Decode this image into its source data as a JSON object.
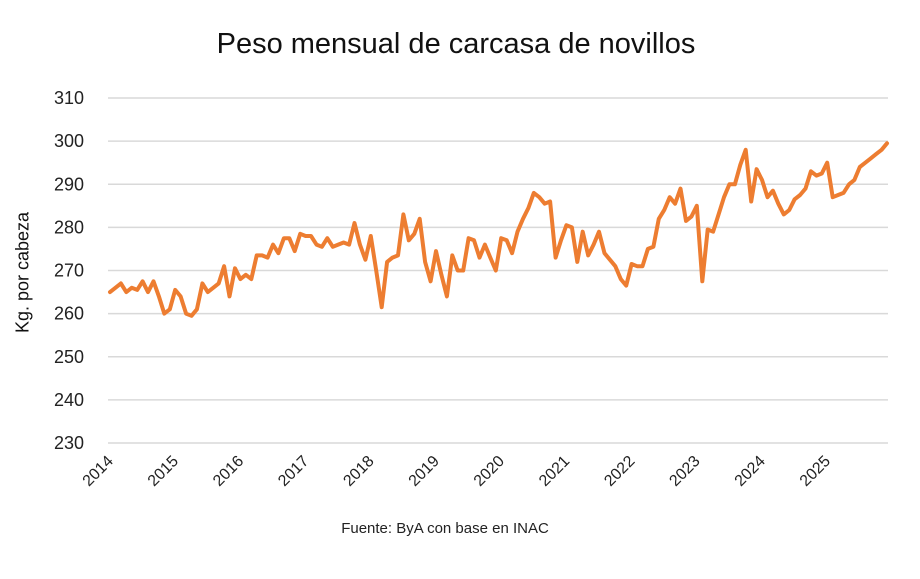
{
  "chart_data": {
    "type": "line",
    "title": "Peso mensual de carcasa de novillos",
    "ylabel": "Kg. por cabeza",
    "xlabel": "",
    "source": "Fuente: ByA con base en INAC",
    "ylim": [
      230,
      310
    ],
    "yticks": [
      230,
      240,
      250,
      260,
      270,
      280,
      290,
      300,
      310
    ],
    "xticks": [
      "2014",
      "2015",
      "2016",
      "2017",
      "2018",
      "2019",
      "2020",
      "2021",
      "2022",
      "2023",
      "2024",
      "2025"
    ],
    "grid": true,
    "frequency": "monthly",
    "color": "#ED7D31",
    "series": [
      {
        "values": [
          265,
          266,
          267,
          265,
          266,
          265.5,
          267.5,
          265,
          267.5,
          264,
          260,
          261,
          265.5,
          264,
          260,
          259.5,
          261,
          267,
          265,
          266,
          267,
          271,
          264,
          270.5,
          268,
          269,
          268,
          273.5,
          273.5,
          273,
          276,
          274,
          277.5,
          277.5,
          274.5,
          278.5,
          278,
          278,
          276,
          275.5,
          277.5,
          275.5,
          276,
          276.5,
          276,
          281,
          276,
          272.5,
          278,
          270,
          261.5,
          272,
          273,
          273.5,
          283,
          277,
          278.5,
          282,
          272,
          267.5,
          274.5,
          269,
          264,
          273.5,
          270,
          270,
          277.5,
          277,
          273,
          276,
          273,
          270,
          277.5,
          277,
          274,
          279,
          282,
          284.5,
          288,
          287,
          285.5,
          286,
          273,
          277,
          280.5,
          280,
          272,
          279,
          273.5,
          276,
          279,
          274,
          272.5,
          271,
          268,
          266.5,
          271.5,
          271,
          271,
          275,
          275.5,
          282,
          284,
          287,
          285.5,
          289,
          281.5,
          282.5,
          285,
          267.5,
          279.5,
          279,
          283,
          287,
          290,
          290,
          294.5,
          298,
          286,
          293.5,
          291,
          287,
          288.5,
          285.5,
          283,
          284,
          286.5,
          287.5,
          289,
          293,
          292,
          292.5,
          295,
          287,
          287.5,
          288,
          290,
          291,
          294,
          295,
          296,
          297,
          298,
          299.5
        ]
      }
    ]
  }
}
